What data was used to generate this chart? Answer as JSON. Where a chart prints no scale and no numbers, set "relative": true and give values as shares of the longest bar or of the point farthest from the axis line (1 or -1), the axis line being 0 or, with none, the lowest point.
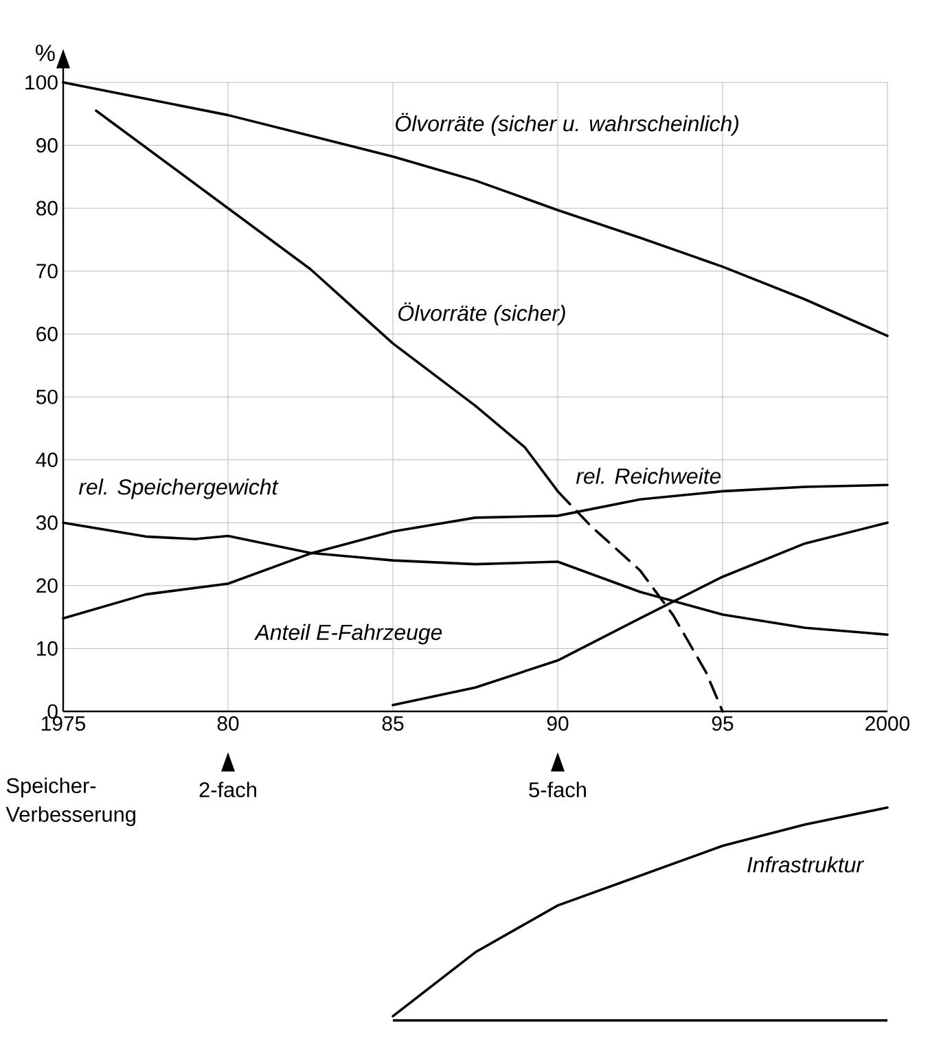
{
  "chart_data": [
    {
      "type": "line",
      "ylabel": "%",
      "xlim": [
        1975,
        2000
      ],
      "ylim": [
        0,
        100
      ],
      "xticks": [
        1975,
        {
          "value": 1980,
          "label": "80"
        },
        {
          "value": 1985,
          "label": "85"
        },
        {
          "value": 1990,
          "label": "90"
        },
        {
          "value": 1995,
          "label": "95"
        },
        2000
      ],
      "yticks": [
        0,
        10,
        20,
        30,
        40,
        50,
        60,
        70,
        80,
        90,
        100
      ],
      "grid": true,
      "legend": false,
      "series": [
        {
          "name": "Ölvorräte (sicher u. wahrscheinlich)",
          "color": "#000000",
          "x": [
            1975,
            1977.5,
            1980,
            1982.5,
            1985,
            1987.5,
            1990,
            1992.5,
            1995,
            1997.5,
            2000
          ],
          "values": [
            100,
            97.4,
            94.8,
            91.5,
            88.2,
            84.4,
            79.7,
            75.3,
            70.7,
            65.5,
            59.7
          ]
        },
        {
          "name": "Ölvorräte (sicher)",
          "color": "#000000",
          "x": [
            1976,
            1980,
            1982.5,
            1985,
            1987.5,
            1989,
            1990
          ],
          "values": [
            95.5,
            80,
            70.3,
            58.5,
            48.6,
            42,
            35
          ]
        },
        {
          "name": "rel. Speichergewicht",
          "color": "#000000",
          "x": [
            1975,
            1977.5,
            1979,
            1980,
            1982.5,
            1985,
            1987.5,
            1990,
            1992.5,
            1995,
            1997.5,
            2000
          ],
          "values": [
            30,
            27.8,
            27.4,
            27.9,
            25.2,
            24,
            23.4,
            23.8,
            19,
            15.4,
            13.3,
            12.2
          ]
        },
        {
          "name": "rel. Reichweite",
          "color": "#000000",
          "x": [
            1975,
            1977.5,
            1980,
            1982.5,
            1985,
            1987.5,
            1990,
            1992.5,
            1995,
            1997.5,
            2000
          ],
          "values": [
            14.8,
            18.6,
            20.3,
            25.1,
            28.6,
            30.8,
            31.1,
            33.7,
            35,
            35.7,
            36
          ]
        },
        {
          "name": "Anteil E-Fahrzeuge",
          "color": "#000000",
          "x": [
            1985,
            1987.5,
            1990,
            1992.5,
            1995,
            1997.5,
            2000
          ],
          "values": [
            1,
            3.8,
            8.1,
            14.8,
            21.4,
            26.7,
            30
          ]
        },
        {
          "color": "#000000",
          "line_style": "dashed",
          "x": [
            1990,
            1991,
            1992.5,
            1993.5,
            1994.5,
            1995
          ],
          "values": [
            35,
            29.5,
            22.4,
            15.3,
            6.2,
            0
          ]
        }
      ],
      "annotations": [
        "Speicher-Verbesserung",
        "2-fach",
        "5-fach"
      ]
    },
    {
      "type": "line",
      "relative": true,
      "categories": [
        null,
        null,
        null,
        null,
        null,
        null,
        null
      ],
      "series": [
        {
          "name": "Infrastruktur",
          "color": "#000000",
          "values": [
            0.02,
            0.32,
            0.54,
            0.68,
            0.82,
            0.92,
            1
          ]
        }
      ]
    }
  ]
}
